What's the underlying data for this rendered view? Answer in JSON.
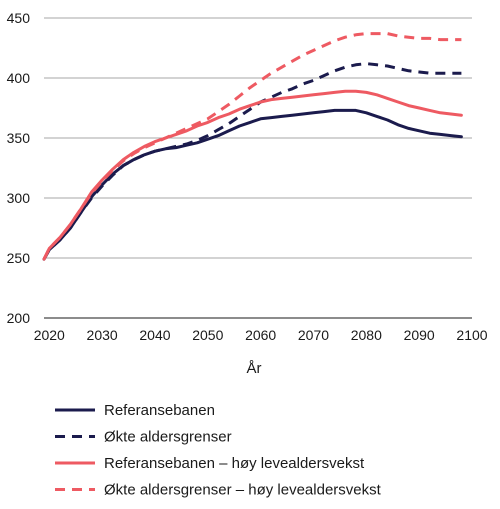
{
  "chart_data": {
    "type": "line",
    "xlabel": "År",
    "ylabel": "",
    "xlim": [
      2019,
      2100
    ],
    "ylim": [
      200,
      450
    ],
    "xticks": [
      2020,
      2030,
      2040,
      2050,
      2060,
      2070,
      2080,
      2090,
      2100
    ],
    "yticks": [
      200,
      250,
      300,
      350,
      400,
      450
    ],
    "grid": "horizontal",
    "legend_position": "bottom",
    "series": [
      {
        "name": "Referansebanen",
        "color": "#1b1b4d",
        "dash": "solid",
        "x": [
          2019,
          2020,
          2022,
          2024,
          2026,
          2028,
          2030,
          2032,
          2034,
          2036,
          2038,
          2040,
          2042,
          2044,
          2046,
          2048,
          2050,
          2052,
          2054,
          2056,
          2058,
          2060,
          2062,
          2064,
          2066,
          2068,
          2070,
          2072,
          2074,
          2076,
          2078,
          2080,
          2082,
          2084,
          2086,
          2088,
          2090,
          2092,
          2094,
          2096,
          2098
        ],
        "y": [
          249,
          257,
          265,
          275,
          288,
          301,
          311,
          320,
          327,
          332,
          336,
          339,
          341,
          342,
          344,
          346,
          349,
          352,
          356,
          360,
          363,
          366,
          367,
          368,
          369,
          370,
          371,
          372,
          373,
          373,
          373,
          371,
          368,
          365,
          361,
          358,
          356,
          354,
          353,
          352,
          351
        ]
      },
      {
        "name": "Økte aldersgrenser",
        "color": "#1b1b4d",
        "dash": "dashed",
        "x": [
          2019,
          2020,
          2022,
          2024,
          2026,
          2028,
          2030,
          2032,
          2034,
          2036,
          2038,
          2040,
          2042,
          2044,
          2046,
          2048,
          2050,
          2052,
          2054,
          2056,
          2058,
          2060,
          2062,
          2064,
          2066,
          2068,
          2070,
          2072,
          2074,
          2076,
          2078,
          2080,
          2082,
          2084,
          2086,
          2088,
          2090,
          2092,
          2094,
          2096,
          2098
        ],
        "y": [
          249,
          257,
          265,
          275,
          288,
          300,
          310,
          319,
          327,
          332,
          336,
          339,
          341,
          343,
          345,
          348,
          352,
          357,
          362,
          368,
          374,
          380,
          384,
          388,
          391,
          395,
          398,
          402,
          406,
          409,
          411,
          412,
          411,
          410,
          408,
          406,
          405,
          404,
          404,
          404,
          404
        ]
      },
      {
        "name": "Referansebanen – høy levealdersvekst",
        "color": "#ee5a62",
        "dash": "solid",
        "x": [
          2019,
          2020,
          2022,
          2024,
          2026,
          2028,
          2030,
          2032,
          2034,
          2036,
          2038,
          2040,
          2042,
          2044,
          2046,
          2048,
          2050,
          2052,
          2054,
          2056,
          2058,
          2060,
          2062,
          2064,
          2066,
          2068,
          2070,
          2072,
          2074,
          2076,
          2078,
          2080,
          2082,
          2084,
          2086,
          2088,
          2090,
          2092,
          2094,
          2096,
          2098
        ],
        "y": [
          249,
          258,
          267,
          278,
          291,
          305,
          315,
          324,
          332,
          338,
          343,
          347,
          350,
          353,
          356,
          360,
          363,
          367,
          370,
          374,
          377,
          380,
          382,
          383,
          384,
          385,
          386,
          387,
          388,
          389,
          389,
          388,
          386,
          383,
          380,
          377,
          375,
          373,
          371,
          370,
          369
        ]
      },
      {
        "name": "Økte aldersgrenser – høy levealdersvekst",
        "color": "#ee5a62",
        "dash": "dashed",
        "x": [
          2019,
          2020,
          2022,
          2024,
          2026,
          2028,
          2030,
          2032,
          2034,
          2036,
          2038,
          2040,
          2042,
          2044,
          2046,
          2048,
          2050,
          2052,
          2054,
          2056,
          2058,
          2060,
          2062,
          2064,
          2066,
          2068,
          2070,
          2072,
          2074,
          2076,
          2078,
          2080,
          2082,
          2084,
          2086,
          2088,
          2090,
          2092,
          2094,
          2096,
          2098
        ],
        "y": [
          249,
          258,
          267,
          278,
          291,
          304,
          314,
          323,
          331,
          337,
          342,
          346,
          350,
          354,
          358,
          362,
          366,
          372,
          378,
          385,
          392,
          398,
          404,
          409,
          414,
          419,
          423,
          427,
          431,
          434,
          436,
          437,
          437,
          437,
          435,
          434,
          433,
          433,
          432,
          432,
          432
        ]
      }
    ]
  }
}
